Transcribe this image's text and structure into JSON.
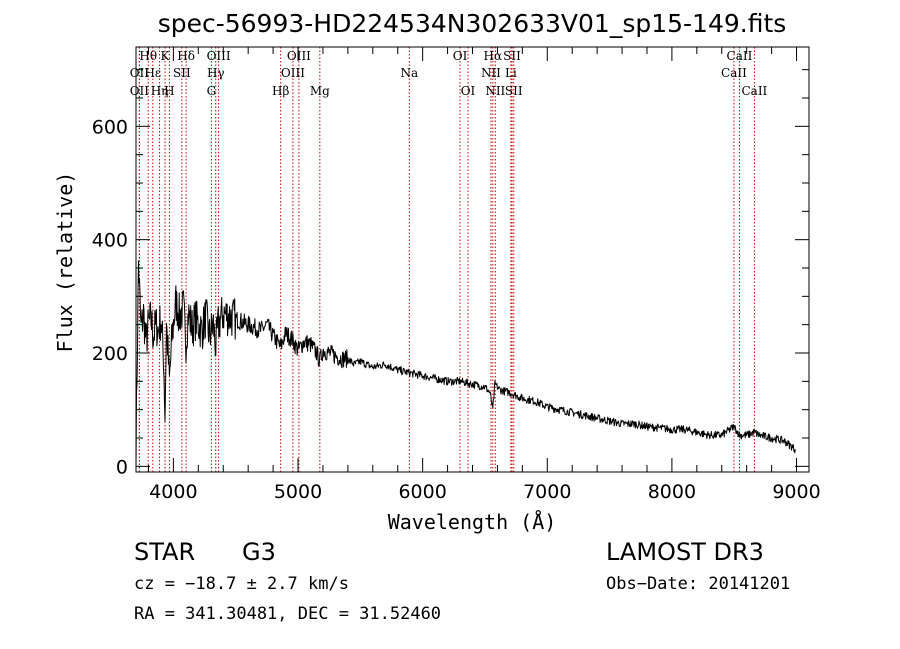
{
  "chart_data": {
    "type": "line",
    "title": "spec-56993-HD224534N302633V01_sp15-149.fits",
    "xlabel": "Wavelength (Å)",
    "ylabel": "Flux (relative)",
    "xlim": [
      3700,
      9100
    ],
    "ylim": [
      -10,
      740
    ],
    "xticks": [
      4000,
      5000,
      6000,
      7000,
      8000,
      9000
    ],
    "yticks": [
      0,
      200,
      400,
      600
    ],
    "grid": false,
    "series": [
      {
        "name": "flux",
        "x": [
          3700,
          3720,
          3740,
          3760,
          3780,
          3800,
          3820,
          3840,
          3860,
          3880,
          3900,
          3920,
          3933,
          3945,
          3968,
          3990,
          4020,
          4050,
          4080,
          4101,
          4120,
          4150,
          4180,
          4200,
          4230,
          4260,
          4290,
          4320,
          4340,
          4360,
          4400,
          4450,
          4500,
          4550,
          4600,
          4650,
          4700,
          4750,
          4800,
          4861,
          4900,
          4950,
          5000,
          5050,
          5100,
          5150,
          5175,
          5200,
          5250,
          5300,
          5350,
          5400,
          5450,
          5500,
          5600,
          5700,
          5800,
          5893,
          6000,
          6100,
          6200,
          6300,
          6400,
          6500,
          6540,
          6563,
          6580,
          6620,
          6700,
          6800,
          6900,
          7000,
          7100,
          7200,
          7300,
          7400,
          7500,
          7600,
          7700,
          7800,
          7900,
          8000,
          8100,
          8200,
          8300,
          8400,
          8498,
          8542,
          8600,
          8662,
          8700,
          8800,
          8900,
          8990
        ],
        "y": [
          30,
          360,
          240,
          270,
          220,
          250,
          260,
          230,
          250,
          240,
          260,
          200,
          90,
          250,
          150,
          230,
          290,
          265,
          280,
          220,
          270,
          245,
          260,
          250,
          240,
          265,
          230,
          250,
          210,
          250,
          270,
          265,
          260,
          255,
          250,
          245,
          240,
          250,
          230,
          210,
          235,
          225,
          205,
          220,
          215,
          200,
          185,
          205,
          200,
          195,
          190,
          190,
          180,
          185,
          175,
          180,
          170,
          165,
          160,
          155,
          150,
          150,
          145,
          140,
          130,
          100,
          145,
          135,
          130,
          120,
          115,
          105,
          100,
          95,
          90,
          85,
          80,
          75,
          75,
          70,
          68,
          65,
          65,
          60,
          55,
          55,
          70,
          55,
          55,
          60,
          55,
          50,
          45,
          30
        ]
      }
    ],
    "spectral_lines": [
      {
        "label": "Hθ",
        "wavelength": 3798,
        "row": 1
      },
      {
        "label": "OII",
        "wavelength": 3727,
        "row": 2
      },
      {
        "label": "OII",
        "wavelength": 3727,
        "row": 3
      },
      {
        "label": "Hε",
        "wavelength": 3835,
        "row": 2
      },
      {
        "label": "Hη",
        "wavelength": 3889,
        "row": 3
      },
      {
        "label": "K",
        "wavelength": 3933,
        "row": 1
      },
      {
        "label": "H",
        "wavelength": 3968,
        "row": 3
      },
      {
        "label": "SII",
        "wavelength": 4068,
        "row": 2
      },
      {
        "label": "Hδ",
        "wavelength": 4102,
        "row": 1
      },
      {
        "label": "OIII",
        "wavelength": 4363,
        "row": 1
      },
      {
        "label": "Hγ",
        "wavelength": 4340,
        "row": 2
      },
      {
        "label": "G",
        "wavelength": 4305,
        "row": 3
      },
      {
        "label": "Hβ",
        "wavelength": 4861,
        "row": 3
      },
      {
        "label": "OIII",
        "wavelength": 5007,
        "row": 1
      },
      {
        "label": "OIII",
        "wavelength": 4959,
        "row": 2
      },
      {
        "label": "Mg",
        "wavelength": 5175,
        "row": 3
      },
      {
        "label": "Na",
        "wavelength": 5893,
        "row": 2
      },
      {
        "label": "OI",
        "wavelength": 6300,
        "row": 1
      },
      {
        "label": "OI",
        "wavelength": 6364,
        "row": 3
      },
      {
        "label": "Hα",
        "wavelength": 6563,
        "row": 1
      },
      {
        "label": "NII",
        "wavelength": 6548,
        "row": 2
      },
      {
        "label": "NII",
        "wavelength": 6583,
        "row": 3
      },
      {
        "label": "SII",
        "wavelength": 6717,
        "row": 1
      },
      {
        "label": "Li",
        "wavelength": 6708,
        "row": 2
      },
      {
        "label": "SII",
        "wavelength": 6731,
        "row": 3
      },
      {
        "label": "CaII",
        "wavelength": 8542,
        "row": 1
      },
      {
        "label": "CaII",
        "wavelength": 8498,
        "row": 2
      },
      {
        "label": "CaII",
        "wavelength": 8662,
        "row": 3
      }
    ],
    "colors": {
      "spectrum": "#000000",
      "lines": "#cc0000"
    }
  },
  "info": {
    "object_class": "STAR",
    "subclass": "G3",
    "survey": "LAMOST DR3",
    "redshift": "cz = −18.7 ± 2.7 km/s",
    "obs_date": "Obs−Date: 20141201",
    "coordinates": "RA = 341.30481, DEC =  31.52460"
  }
}
